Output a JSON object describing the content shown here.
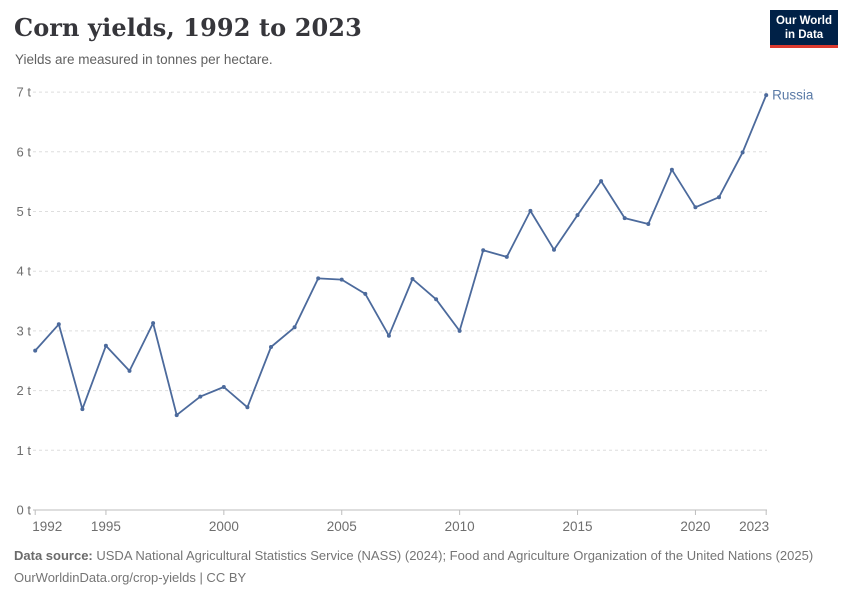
{
  "header": {
    "title": "Corn yields, 1992 to 2023",
    "subtitle": "Yields are measured in tonnes per hectare."
  },
  "logo": {
    "line1": "Our World",
    "line2": "in Data"
  },
  "chart_data": {
    "type": "line",
    "title": "Corn yields, 1992 to 2023",
    "unit": "tonnes per hectare",
    "x": [
      1992,
      1993,
      1994,
      1995,
      1996,
      1997,
      1998,
      1999,
      2000,
      2001,
      2002,
      2003,
      2004,
      2005,
      2006,
      2007,
      2008,
      2009,
      2010,
      2011,
      2012,
      2013,
      2014,
      2015,
      2016,
      2017,
      2018,
      2019,
      2020,
      2021,
      2022,
      2023
    ],
    "series": [
      {
        "name": "Russia",
        "color": "#4C6A9C",
        "values": [
          2.67,
          3.11,
          1.69,
          2.75,
          2.33,
          3.13,
          1.59,
          1.9,
          2.06,
          1.72,
          2.73,
          3.06,
          3.88,
          3.86,
          3.62,
          2.92,
          3.87,
          3.53,
          3.0,
          4.35,
          4.24,
          5.01,
          4.36,
          4.94,
          5.51,
          4.89,
          4.79,
          5.7,
          5.07,
          5.24,
          5.99,
          6.95
        ]
      }
    ],
    "xlabel": "",
    "ylabel": "",
    "ylim": [
      0,
      7
    ],
    "yticks": [
      0,
      1,
      2,
      3,
      4,
      5,
      6,
      7
    ],
    "ytick_suffix": " t",
    "xticks": [
      1992,
      1995,
      2000,
      2005,
      2010,
      2015,
      2020,
      2023
    ],
    "grid": "horizontal-dashed",
    "legend_position": "end-of-line-label"
  },
  "footer": {
    "datasource_label": "Data source:",
    "datasource_text": "USDA National Agricultural Statistics Service (NASS) (2024); Food and Agriculture Organization of the United Nations (2025)",
    "attribution": "OurWorldinData.org/crop-yields | CC BY"
  },
  "colors": {
    "line": "#4C6A9C",
    "series_label": "#5B7BA7",
    "grid": "#DEDEDE",
    "axis": "#BDBDBD",
    "tick_text": "#6E6E6E",
    "title_text": "#36363B",
    "subtitle_text": "#616161",
    "footer_text": "#757575",
    "logo_bg": "#002147",
    "logo_red": "#DC3A2F"
  }
}
